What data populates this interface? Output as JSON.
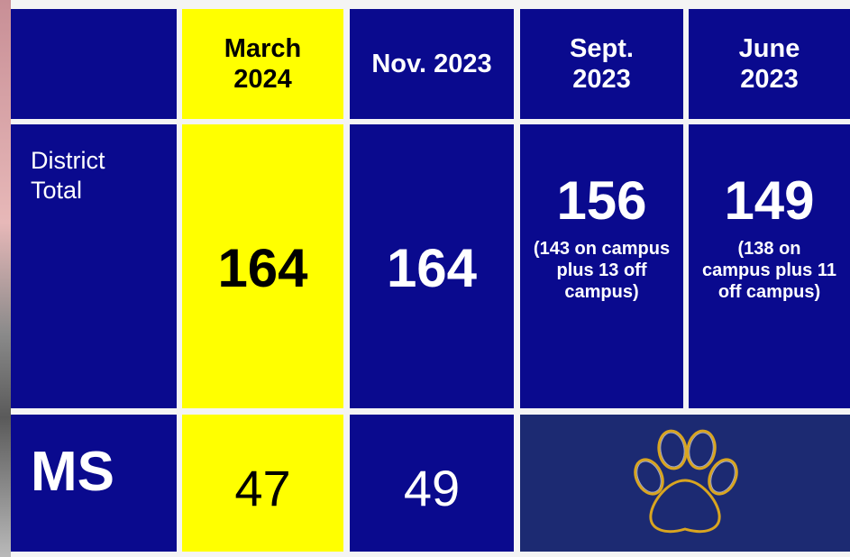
{
  "table": {
    "columns": [
      "March 2024",
      "Nov. 2023",
      "Sept. 2023",
      "June 2023"
    ],
    "rows": [
      {
        "label": "District Total",
        "cells": [
          {
            "value": 164
          },
          {
            "value": 164
          },
          {
            "value": 156,
            "note": "(143 on campus plus 13 off campus)"
          },
          {
            "value": 149,
            "note": "(138 on campus plus 11 off campus)"
          }
        ]
      },
      {
        "label": "MS",
        "cells": [
          {
            "value": 47
          },
          {
            "value": 49
          }
        ]
      }
    ]
  }
}
